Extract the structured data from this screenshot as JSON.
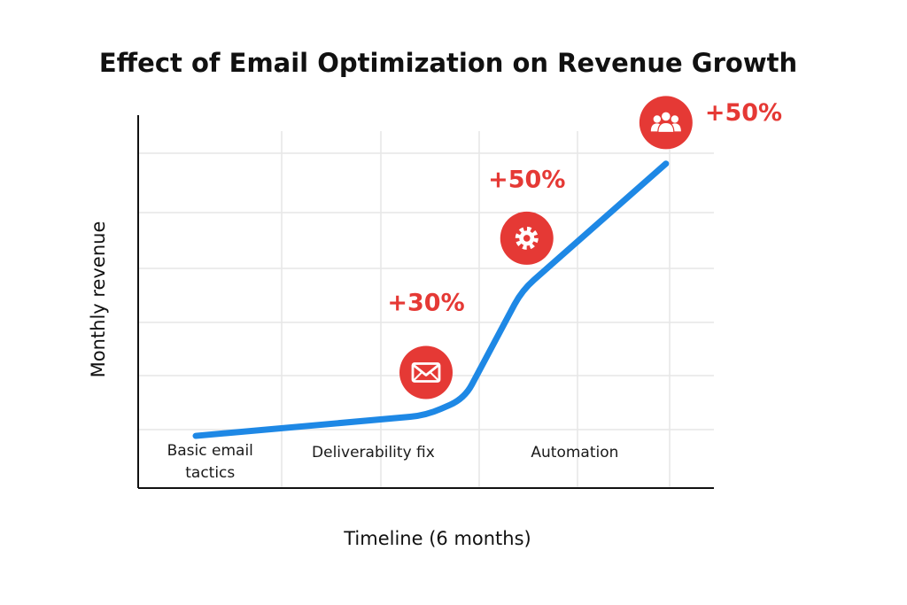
{
  "chart_data": {
    "type": "line",
    "title": "Effect of Email Optimization on Revenue Growth",
    "xlabel": "Timeline (6 months)",
    "ylabel": "Monthly revenue",
    "x_range": [
      0,
      6
    ],
    "y_range": [
      0,
      100
    ],
    "grid": true,
    "axis_ticks": false,
    "series": [
      {
        "name": "Monthly revenue",
        "color": "#1e88e5",
        "points": [
          [
            0.6,
            14
          ],
          [
            3,
            19.5
          ],
          [
            3.4,
            24
          ],
          [
            4,
            53
          ],
          [
            5.5,
            87
          ]
        ]
      }
    ],
    "phase_labels": [
      {
        "lines": [
          "Basic email",
          "tactics"
        ],
        "x": 0.75
      },
      {
        "lines": [
          "Deliverability fix"
        ],
        "x": 2.45
      },
      {
        "lines": [
          "Automation"
        ],
        "x": 4.55
      }
    ],
    "annotations": [
      {
        "label": "+30%",
        "icon": "mail-icon",
        "x": 3,
        "icon_y": 31,
        "label_y": 50
      },
      {
        "label": "+50%",
        "icon": "gear-icon",
        "x": 4.05,
        "icon_y": 67,
        "label_y": 83
      },
      {
        "label": "+50%",
        "icon": "people-icon",
        "x": 5.5,
        "icon_y": 98,
        "label_y": 101
      }
    ],
    "accent_color": "#e53935"
  }
}
